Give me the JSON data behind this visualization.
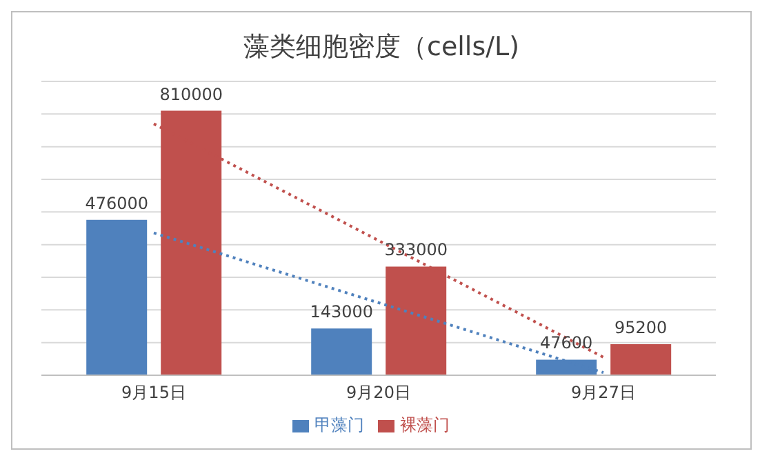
{
  "chart_data": {
    "type": "bar",
    "title": "藻类细胞密度（cells/L)",
    "categories": [
      "9月15日",
      "9月20日",
      "9月27日"
    ],
    "series": [
      {
        "name": "甲藻门",
        "color": "#4f81bd",
        "values": [
          476000,
          143000,
          47600
        ],
        "value_labels": [
          "476000",
          "143000",
          "47600"
        ]
      },
      {
        "name": "裸藻门",
        "color": "#c0504d",
        "values": [
          810000,
          333000,
          95200
        ],
        "value_labels": [
          "810000",
          "333000",
          "95200"
        ]
      },
      {
        "type": "line",
        "color": "#4f81bd",
        "line_style": "dotted",
        "x": [
          "9月15日",
          "9月27日"
        ],
        "values": [
          436000,
          8000
        ]
      },
      {
        "type": "line",
        "color": "#c0504d",
        "line_style": "dotted",
        "x": [
          "9月15日",
          "9月27日"
        ],
        "values": [
          770000,
          55000
        ]
      }
    ],
    "ylim": [
      0,
      900000
    ],
    "yticks": [
      {
        "value": 0,
        "label": null
      },
      {
        "value": 100000,
        "label": null
      },
      {
        "value": 200000,
        "label": null
      },
      {
        "value": 300000,
        "label": null
      },
      {
        "value": 400000,
        "label": null
      },
      {
        "value": 500000,
        "label": null
      },
      {
        "value": 600000,
        "label": null
      },
      {
        "value": 700000,
        "label": null
      },
      {
        "value": 800000,
        "label": null
      },
      {
        "value": 900000,
        "label": null
      }
    ],
    "tick_labels": "x",
    "grid": "y",
    "legend": "bottom"
  }
}
